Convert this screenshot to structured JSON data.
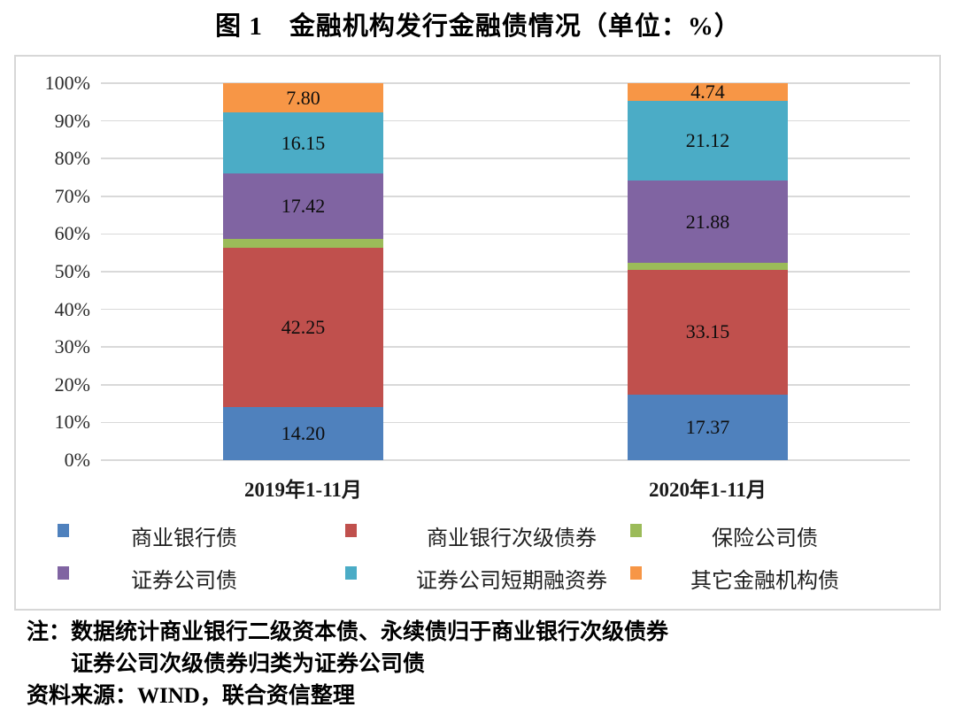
{
  "title": "图 1　金融机构发行金融债情况（单位：%）",
  "chart_data": {
    "type": "bar",
    "stacked": true,
    "unit": "%",
    "title": "图 1　金融机构发行金融债情况（单位：%）",
    "categories": [
      "2019年1-11月",
      "2020年1-11月"
    ],
    "series": [
      {
        "name": "商业银行债",
        "color": "#4F81BD",
        "values": [
          14.2,
          17.37
        ],
        "value_labels": [
          "14.20",
          "17.37"
        ]
      },
      {
        "name": "商业银行次级债券",
        "color": "#C0504D",
        "values": [
          42.25,
          33.15
        ],
        "value_labels": [
          "42.25",
          "33.15"
        ]
      },
      {
        "name": "保险公司债",
        "color": "#9BBB59",
        "values": [
          2.18,
          1.74
        ],
        "value_labels": [
          "",
          ""
        ]
      },
      {
        "name": "证券公司债",
        "color": "#8064A2",
        "values": [
          17.42,
          21.88
        ],
        "value_labels": [
          "17.42",
          "21.88"
        ]
      },
      {
        "name": "证券公司短期融资券",
        "color": "#4BACC6",
        "values": [
          16.15,
          21.12
        ],
        "value_labels": [
          "16.15",
          "21.12"
        ]
      },
      {
        "name": "其它金融机构债",
        "color": "#F79646",
        "values": [
          7.8,
          4.74
        ],
        "value_labels": [
          "7.80",
          "4.74"
        ]
      }
    ],
    "y_axis": {
      "min": 0,
      "max": 100,
      "step": 10,
      "ticks": [
        "100%",
        "90%",
        "80%",
        "70%",
        "60%",
        "50%",
        "40%",
        "30%",
        "20%",
        "10%",
        "0%"
      ]
    },
    "grid": true,
    "legend_position": "bottom",
    "legend_rows": [
      [
        0,
        1,
        2
      ],
      [
        3,
        4,
        5
      ]
    ],
    "gridline_color": "#D9D9D9"
  },
  "notes": {
    "line1": "注：数据统计商业银行二级资本债、永续债归于商业银行次级债券",
    "line2": "证券公司次级债券归类为证券公司债",
    "source": "资料来源：WIND，联合资信整理"
  }
}
